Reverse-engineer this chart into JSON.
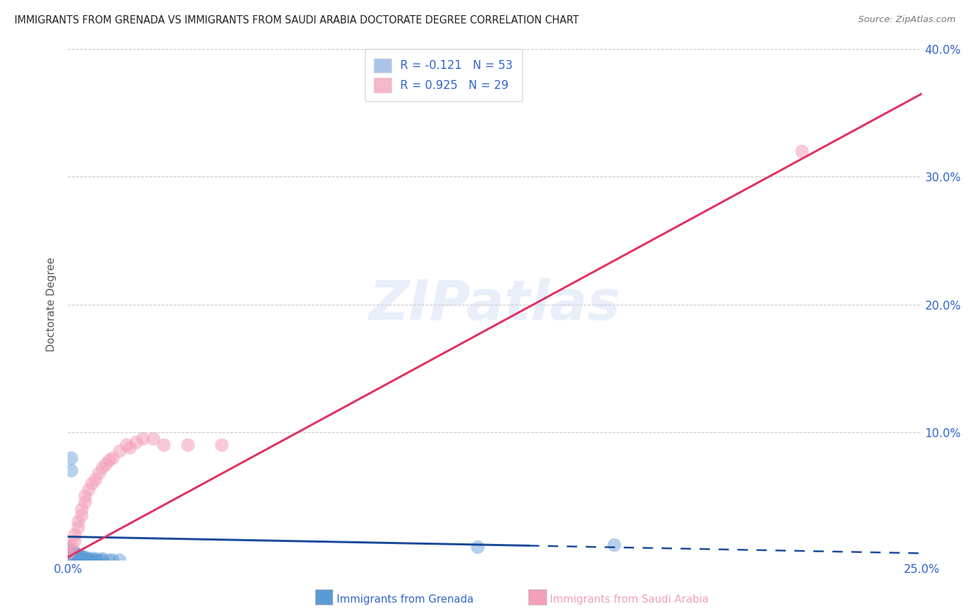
{
  "title": "IMMIGRANTS FROM GRENADA VS IMMIGRANTS FROM SAUDI ARABIA DOCTORATE DEGREE CORRELATION CHART",
  "source": "Source: ZipAtlas.com",
  "xlabel_bottom": "Immigrants from Grenada",
  "xlabel2_bottom": "Immigrants from Saudi Arabia",
  "ylabel": "Doctorate Degree",
  "watermark": "ZIPatlas",
  "xmin": 0.0,
  "xmax": 0.25,
  "ymin": 0.0,
  "ymax": 0.4,
  "color_grenada": "#5b9bd5",
  "color_saudi": "#f4a0b8",
  "color_line_grenada": "#1a4a9a",
  "color_line_saudi": "#e03060",
  "axis_color": "#3366cc",
  "grid_color": "#bbbbbb",
  "background_color": "#ffffff",
  "title_color": "#222222",
  "R_grenada": -0.121,
  "N_grenada": 53,
  "R_saudi": 0.925,
  "N_saudi": 29,
  "grenada_x": [
    0.0,
    0.0,
    0.0,
    0.0,
    0.0,
    0.0,
    0.0,
    0.0,
    0.0,
    0.0,
    0.001,
    0.001,
    0.001,
    0.001,
    0.001,
    0.001,
    0.001,
    0.001,
    0.001,
    0.001,
    0.002,
    0.002,
    0.002,
    0.002,
    0.002,
    0.002,
    0.002,
    0.003,
    0.003,
    0.003,
    0.003,
    0.003,
    0.004,
    0.004,
    0.004,
    0.004,
    0.005,
    0.005,
    0.005,
    0.006,
    0.006,
    0.007,
    0.007,
    0.008,
    0.008,
    0.009,
    0.01,
    0.01,
    0.012,
    0.013,
    0.015,
    0.12,
    0.16
  ],
  "grenada_y": [
    0.0,
    0.001,
    0.002,
    0.003,
    0.004,
    0.005,
    0.006,
    0.007,
    0.008,
    0.01,
    0.0,
    0.001,
    0.002,
    0.003,
    0.004,
    0.005,
    0.006,
    0.007,
    0.08,
    0.07,
    0.0,
    0.001,
    0.002,
    0.003,
    0.004,
    0.005,
    0.006,
    0.0,
    0.001,
    0.002,
    0.003,
    0.004,
    0.0,
    0.001,
    0.002,
    0.003,
    0.0,
    0.001,
    0.002,
    0.0,
    0.001,
    0.0,
    0.001,
    0.0,
    0.001,
    0.0,
    0.0,
    0.001,
    0.0,
    0.0,
    0.0,
    0.01,
    0.012
  ],
  "saudi_x": [
    0.0,
    0.001,
    0.001,
    0.002,
    0.002,
    0.003,
    0.003,
    0.004,
    0.004,
    0.005,
    0.005,
    0.006,
    0.007,
    0.008,
    0.009,
    0.01,
    0.011,
    0.012,
    0.013,
    0.015,
    0.017,
    0.018,
    0.02,
    0.022,
    0.025,
    0.028,
    0.035,
    0.045,
    0.215
  ],
  "saudi_y": [
    0.005,
    0.008,
    0.012,
    0.015,
    0.02,
    0.025,
    0.03,
    0.035,
    0.04,
    0.045,
    0.05,
    0.055,
    0.06,
    0.063,
    0.068,
    0.072,
    0.075,
    0.078,
    0.08,
    0.085,
    0.09,
    0.088,
    0.092,
    0.095,
    0.095,
    0.09,
    0.09,
    0.09,
    0.32
  ],
  "line_gren_x0": 0.0,
  "line_gren_y0": 0.018,
  "line_gren_x1": 0.25,
  "line_gren_y1": 0.005,
  "line_gren_solid_end": 0.135,
  "line_saudi_x0": 0.0,
  "line_saudi_y0": 0.002,
  "line_saudi_x1": 0.25,
  "line_saudi_y1": 0.365
}
